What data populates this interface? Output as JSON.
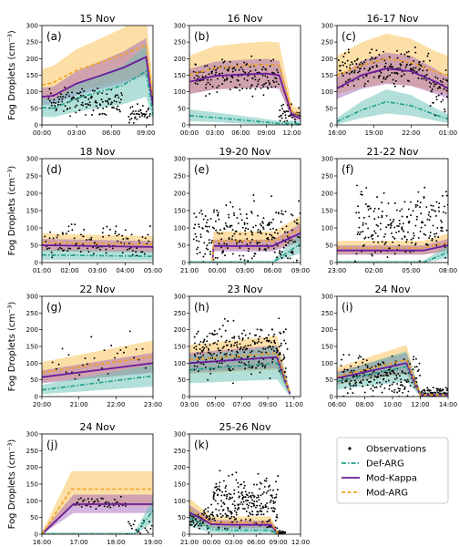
{
  "figure": {
    "ylabel": "Fog Droplets (cm⁻³)",
    "yticks": [
      0,
      50,
      100,
      150,
      200,
      250,
      300
    ],
    "ylim": [
      0,
      300
    ],
    "colors": {
      "observations": "#000000",
      "def_arg": "#1f9e89",
      "mod_kappa": "#6a1b9a",
      "mod_arg": "#f0a020",
      "def_band": "#66c2b3",
      "kappa_band": "#9b59b6",
      "arg_band": "#f9c45c"
    },
    "legend": {
      "position": "right of panel k",
      "items": [
        {
          "label": "Observations",
          "style": "dot"
        },
        {
          "label": "Def-ARG",
          "style": "dashdot"
        },
        {
          "label": "Mod-Kappa",
          "style": "solid"
        },
        {
          "label": "Mod-ARG",
          "style": "dashed"
        }
      ]
    }
  },
  "chart_data": [
    {
      "id": "a",
      "title": "15 Nov",
      "tag": "(a)",
      "type": "line",
      "xlim": [
        0,
        9.6
      ],
      "xticks": [
        0,
        3,
        6,
        9
      ],
      "xticklabels": [
        "00:00",
        "03:00",
        "06:00",
        "09:00"
      ],
      "def": [
        [
          0,
          52
        ],
        [
          1,
          50
        ],
        [
          3,
          80
        ],
        [
          5,
          100
        ],
        [
          7,
          120
        ],
        [
          9,
          162
        ],
        [
          9.6,
          30
        ]
      ],
      "kappa": [
        [
          0,
          85
        ],
        [
          1,
          88
        ],
        [
          3,
          125
        ],
        [
          5,
          148
        ],
        [
          7,
          172
        ],
        [
          9,
          205
        ],
        [
          9.6,
          60
        ]
      ],
      "marg": [
        [
          0,
          120
        ],
        [
          1,
          128
        ],
        [
          3,
          165
        ],
        [
          5,
          188
        ],
        [
          7,
          212
        ],
        [
          9,
          242
        ],
        [
          9.6,
          80
        ]
      ],
      "obs_segments": [
        {
          "x0": 0.5,
          "x1": 7,
          "n": 130,
          "base": 70,
          "amp": 35
        },
        {
          "x0": 7.5,
          "x1": 9.4,
          "n": 40,
          "base": 30,
          "amp": 25
        }
      ]
    },
    {
      "id": "b",
      "title": "16 Nov",
      "tag": "(b)",
      "type": "line",
      "xlim": [
        0,
        13
      ],
      "xticks": [
        0,
        3,
        6,
        9,
        12
      ],
      "xticklabels": [
        "00:00",
        "03:00",
        "06:00",
        "09:00",
        "12:00"
      ],
      "def": [
        [
          0,
          28
        ],
        [
          3,
          22
        ],
        [
          6,
          15
        ],
        [
          9,
          8
        ],
        [
          10.5,
          4
        ],
        [
          12,
          5
        ],
        [
          13,
          3
        ]
      ],
      "kappa": [
        [
          0,
          130
        ],
        [
          3,
          148
        ],
        [
          6,
          152
        ],
        [
          9,
          155
        ],
        [
          10.5,
          150
        ],
        [
          12,
          30
        ],
        [
          13,
          20
        ]
      ],
      "marg": [
        [
          0,
          150
        ],
        [
          3,
          172
        ],
        [
          6,
          178
        ],
        [
          9,
          182
        ],
        [
          10.5,
          180
        ],
        [
          12,
          40
        ],
        [
          13,
          30
        ]
      ],
      "obs_segments": [
        {
          "x0": 0.5,
          "x1": 10.5,
          "n": 170,
          "base": 150,
          "amp": 45
        },
        {
          "x0": 10.5,
          "x1": 13,
          "n": 45,
          "base": 30,
          "amp": 30
        }
      ]
    },
    {
      "id": "c",
      "title": "16-17 Nov",
      "tag": "(c)",
      "type": "line",
      "xlim": [
        0,
        9
      ],
      "xticks": [
        0,
        3,
        6,
        9
      ],
      "xticklabels": [
        "16:00",
        "19:00",
        "22:00",
        "01:00"
      ],
      "def": [
        [
          0,
          10
        ],
        [
          2,
          45
        ],
        [
          4,
          70
        ],
        [
          6,
          58
        ],
        [
          8,
          30
        ],
        [
          9,
          18
        ]
      ],
      "kappa": [
        [
          0,
          110
        ],
        [
          2,
          150
        ],
        [
          4,
          170
        ],
        [
          6,
          162
        ],
        [
          8,
          130
        ],
        [
          9,
          110
        ]
      ],
      "marg": [
        [
          0,
          150
        ],
        [
          2,
          180
        ],
        [
          4,
          200
        ],
        [
          6,
          188
        ],
        [
          8,
          160
        ],
        [
          9,
          150
        ]
      ],
      "obs_segments": [
        {
          "x0": 0.2,
          "x1": 7.5,
          "n": 190,
          "base": 170,
          "amp": 45
        },
        {
          "x0": 7.5,
          "x1": 9,
          "n": 40,
          "base": 90,
          "amp": 60
        }
      ]
    },
    {
      "id": "d",
      "title": "18 Nov",
      "tag": "(d)",
      "type": "line",
      "xlim": [
        0,
        4
      ],
      "xticks": [
        0,
        1,
        2,
        3,
        4
      ],
      "xticklabels": [
        "01:00",
        "02:00",
        "03:00",
        "04:00",
        "05:00"
      ],
      "def": [
        [
          0,
          22
        ],
        [
          4,
          18
        ]
      ],
      "kappa": [
        [
          0,
          50
        ],
        [
          4,
          45
        ]
      ],
      "marg": [
        [
          0,
          58
        ],
        [
          4,
          52
        ]
      ],
      "obs_segments": [
        {
          "x0": 0.1,
          "x1": 3.9,
          "n": 110,
          "base": 55,
          "amp": 45
        }
      ]
    },
    {
      "id": "e",
      "title": "19-20 Nov",
      "tag": "(e)",
      "type": "line",
      "xlim": [
        0,
        12
      ],
      "xticks": [
        0,
        3,
        6,
        9,
        12
      ],
      "xticklabels": [
        "21:00",
        "00:00",
        "03:00",
        "06:00",
        "09:00"
      ],
      "def": [
        [
          0,
          0
        ],
        [
          2.5,
          0
        ],
        [
          9,
          0
        ],
        [
          12,
          55
        ]
      ],
      "kappa": [
        [
          2.5,
          5
        ],
        [
          2.6,
          48
        ],
        [
          9,
          48
        ],
        [
          12,
          85
        ]
      ],
      "marg": [
        [
          2.5,
          5
        ],
        [
          2.6,
          62
        ],
        [
          9,
          62
        ],
        [
          12,
          95
        ]
      ],
      "obs_segments": [
        {
          "x0": 0.5,
          "x1": 12,
          "n": 260,
          "base": 80,
          "amp": 80
        }
      ]
    },
    {
      "id": "f",
      "title": "21-22 Nov",
      "tag": "(f)",
      "type": "line",
      "xlim": [
        0,
        9
      ],
      "xticks": [
        0,
        3,
        6,
        9
      ],
      "xticklabels": [
        "23:00",
        "02:00",
        "05:00",
        "08:00"
      ],
      "def": [
        [
          0,
          0
        ],
        [
          7,
          0
        ],
        [
          9,
          30
        ]
      ],
      "kappa": [
        [
          0,
          35
        ],
        [
          7,
          35
        ],
        [
          9,
          50
        ]
      ],
      "marg": [
        [
          0,
          42
        ],
        [
          7,
          42
        ],
        [
          9,
          58
        ]
      ],
      "obs_segments": [
        {
          "x0": 1.5,
          "x1": 9,
          "n": 210,
          "base": 110,
          "amp": 90
        }
      ]
    },
    {
      "id": "g",
      "title": "22 Nov",
      "tag": "(g)",
      "type": "line",
      "xlim": [
        0,
        3
      ],
      "xticks": [
        0,
        1,
        2,
        3
      ],
      "xticklabels": [
        "20:00",
        "21:00",
        "22:00",
        "23:00"
      ],
      "def": [
        [
          0,
          20
        ],
        [
          3,
          62
        ]
      ],
      "kappa": [
        [
          0,
          58
        ],
        [
          3,
          100
        ]
      ],
      "marg": [
        [
          0,
          72
        ],
        [
          3,
          120
        ]
      ],
      "obs_segments": [
        {
          "x0": 0.3,
          "x1": 2.9,
          "n": 30,
          "base": 110,
          "amp": 70
        }
      ]
    },
    {
      "id": "h",
      "title": "23 Nov",
      "tag": "(h)",
      "type": "line",
      "xlim": [
        0,
        8.5
      ],
      "xticks": [
        0,
        2,
        4,
        6,
        8
      ],
      "xticklabels": [
        "03:00",
        "05:00",
        "07:00",
        "09:00",
        "11:00"
      ],
      "def": [
        [
          0,
          80
        ],
        [
          6.7,
          100
        ],
        [
          7.7,
          8
        ]
      ],
      "kappa": [
        [
          0,
          100
        ],
        [
          6.7,
          118
        ],
        [
          7.7,
          8
        ]
      ],
      "marg": [
        [
          0,
          110
        ],
        [
          6.7,
          130
        ],
        [
          7.7,
          8
        ]
      ],
      "obs_segments": [
        {
          "x0": 0.3,
          "x1": 7.5,
          "n": 260,
          "base": 140,
          "amp": 70
        }
      ]
    },
    {
      "id": "i",
      "title": "24 Nov",
      "tag": "(i)",
      "type": "line",
      "xlim": [
        0,
        8
      ],
      "xticks": [
        0,
        2,
        4,
        6,
        8
      ],
      "xticklabels": [
        "06:00",
        "08:00",
        "10:00",
        "12:00",
        "14:00"
      ],
      "def": [
        [
          0,
          45
        ],
        [
          5,
          90
        ],
        [
          6,
          5
        ],
        [
          8,
          5
        ]
      ],
      "kappa": [
        [
          0,
          55
        ],
        [
          5,
          100
        ],
        [
          6,
          5
        ],
        [
          8,
          5
        ]
      ],
      "marg": [
        [
          0,
          60
        ],
        [
          5,
          110
        ],
        [
          6,
          5
        ],
        [
          8,
          5
        ]
      ],
      "obs_segments": [
        {
          "x0": 0.3,
          "x1": 6,
          "n": 210,
          "base": 60,
          "amp": 50
        },
        {
          "x0": 6,
          "x1": 8,
          "n": 60,
          "base": 15,
          "amp": 15
        }
      ]
    },
    {
      "id": "j",
      "title": "24 Nov",
      "tag": "(j)",
      "type": "line",
      "xlim": [
        0,
        3
      ],
      "xticks": [
        0,
        1,
        2,
        3
      ],
      "xticklabels": [
        "16:00",
        "17:00",
        "18:00",
        "19:00"
      ],
      "def": [
        [
          0,
          0
        ],
        [
          2.5,
          0
        ],
        [
          3,
          70
        ]
      ],
      "kappa": [
        [
          0,
          0
        ],
        [
          0.85,
          90
        ],
        [
          3,
          90
        ]
      ],
      "marg": [
        [
          0,
          0
        ],
        [
          0.8,
          135
        ],
        [
          3,
          135
        ]
      ],
      "obs_segments": [
        {
          "x0": 0.9,
          "x1": 2.3,
          "n": 45,
          "base": 95,
          "amp": 15
        },
        {
          "x0": 2.3,
          "x1": 3,
          "n": 20,
          "base": 20,
          "amp": 20
        }
      ]
    },
    {
      "id": "k",
      "title": "25-26 Nov",
      "tag": "(k)",
      "type": "line",
      "xlim": [
        0,
        15
      ],
      "xticks": [
        0,
        3,
        6,
        9,
        12,
        15
      ],
      "xticklabels": [
        "21:00",
        "00:00",
        "03:00",
        "06:00",
        "09:00",
        "12:00"
      ],
      "def": [
        [
          0,
          50
        ],
        [
          3,
          15
        ],
        [
          6,
          12
        ],
        [
          11,
          12
        ],
        [
          12,
          0
        ]
      ],
      "kappa": [
        [
          0,
          65
        ],
        [
          3,
          30
        ],
        [
          6,
          28
        ],
        [
          11,
          28
        ],
        [
          12,
          0
        ]
      ],
      "marg": [
        [
          0,
          75
        ],
        [
          3,
          35
        ],
        [
          6,
          35
        ],
        [
          11,
          35
        ],
        [
          12,
          0
        ]
      ],
      "obs_segments": [
        {
          "x0": 0,
          "x1": 3,
          "n": 60,
          "base": 40,
          "amp": 30
        },
        {
          "x0": 3,
          "x1": 12,
          "n": 260,
          "base": 90,
          "amp": 70
        },
        {
          "x0": 12,
          "x1": 13,
          "n": 20,
          "base": 5,
          "amp": 5
        }
      ]
    }
  ]
}
